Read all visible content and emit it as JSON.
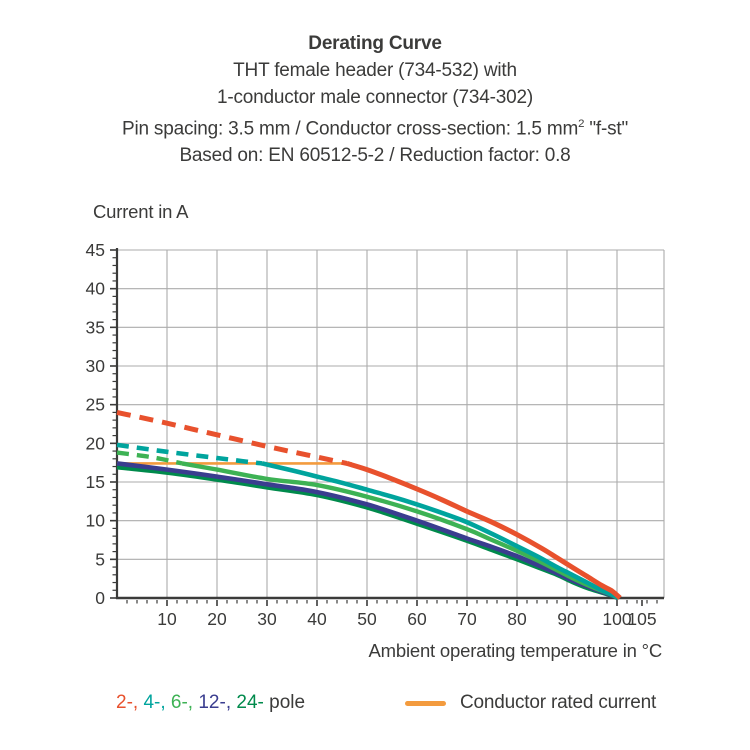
{
  "title_block": {
    "title": "Derating Curve",
    "line2": "THT female header (734-532) with",
    "line3": "1-conductor male connector (734-302)",
    "line4_pre": "Pin spacing: 3.5 mm / Conductor cross-section: 1.5 mm",
    "line4_sup": "2",
    "line4_post": " \"f-st\"",
    "line5": "Based on: EN 60512-5-2 / Reduction factor: 0.8"
  },
  "chart_data": {
    "type": "line",
    "title": "Derating Curve",
    "xlabel": "Ambient operating temperature in °C",
    "ylabel": "Current in A",
    "xlim": [
      0,
      109.4
    ],
    "ylim": [
      0,
      45
    ],
    "grid": true,
    "x_major_ticks": [
      10,
      20,
      30,
      40,
      50,
      60,
      70,
      80,
      90,
      100,
      105
    ],
    "x_grid_ticks": [
      10,
      20,
      30,
      40,
      50,
      60,
      70,
      80,
      90,
      100
    ],
    "x_minor_step": 2,
    "y_major_ticks": [
      0,
      5,
      10,
      15,
      20,
      25,
      30,
      35,
      40,
      45
    ],
    "y_minor_step": 1,
    "colors": {
      "grid": "#ababab",
      "axis": "#3b3b3a",
      "text": "#3b3b3a"
    },
    "series": [
      {
        "name": "24-pole",
        "color": "#008A4C",
        "width": 4.4,
        "segments": [
          {
            "style": "solid",
            "points": [
              [
                0,
                16.9
              ],
              [
                10,
                16.2
              ],
              [
                20,
                15.3
              ],
              [
                30,
                14.3
              ],
              [
                40,
                13.3
              ],
              [
                50,
                11.7
              ],
              [
                60,
                9.6
              ],
              [
                70,
                7.4
              ],
              [
                75,
                6.2
              ],
              [
                80,
                5.0
              ],
              [
                84,
                4.0
              ],
              [
                88,
                3.0
              ],
              [
                91,
                2.1
              ],
              [
                94,
                1.3
              ],
              [
                97,
                0.7
              ],
              [
                99,
                0.3
              ],
              [
                100.1,
                0
              ]
            ]
          }
        ]
      },
      {
        "name": "Conductor rated current",
        "color": "#F39B3E",
        "width": 2.6,
        "segments": [
          {
            "style": "solid",
            "points": [
              [
                0,
                17.4
              ],
              [
                47,
                17.4
              ]
            ]
          }
        ]
      },
      {
        "name": "12-pole",
        "color": "#3A3D8F",
        "width": 4.6,
        "segments": [
          {
            "style": "solid",
            "points": [
              [
                0,
                17.4
              ],
              [
                10,
                16.6
              ],
              [
                20,
                15.7
              ],
              [
                30,
                14.7
              ],
              [
                40,
                13.7
              ],
              [
                50,
                12.1
              ],
              [
                60,
                10.0
              ],
              [
                70,
                7.7
              ],
              [
                75,
                6.6
              ],
              [
                80,
                5.4
              ],
              [
                84,
                4.3
              ],
              [
                88,
                3.2
              ],
              [
                91,
                2.3
              ],
              [
                94,
                1.5
              ],
              [
                97,
                0.8
              ],
              [
                99,
                0.35
              ],
              [
                100.2,
                0
              ]
            ]
          }
        ]
      },
      {
        "name": "6-pole",
        "color": "#3DB254",
        "width": 4.4,
        "segments": [
          {
            "style": "dashed",
            "points": [
              [
                0,
                18.8
              ],
              [
                7,
                18.2
              ],
              [
                13,
                17.4
              ]
            ]
          },
          {
            "style": "solid",
            "points": [
              [
                13,
                17.4
              ],
              [
                20,
                16.6
              ],
              [
                30,
                15.4
              ],
              [
                40,
                14.6
              ],
              [
                50,
                13.1
              ],
              [
                60,
                11.2
              ],
              [
                70,
                8.9
              ],
              [
                75,
                7.5
              ],
              [
                80,
                6.1
              ],
              [
                84,
                4.9
              ],
              [
                88,
                3.6
              ],
              [
                91,
                2.6
              ],
              [
                94,
                1.7
              ],
              [
                97,
                0.9
              ],
              [
                99,
                0.4
              ],
              [
                100.3,
                0
              ]
            ]
          }
        ]
      },
      {
        "name": "4-pole",
        "color": "#00A49D",
        "width": 4.6,
        "segments": [
          {
            "style": "dashed",
            "points": [
              [
                0,
                19.8
              ],
              [
                10,
                18.9
              ],
              [
                20,
                18.1
              ],
              [
                25,
                17.7
              ],
              [
                29,
                17.4
              ]
            ]
          },
          {
            "style": "solid",
            "points": [
              [
                29,
                17.4
              ],
              [
                35,
                16.5
              ],
              [
                40,
                15.7
              ],
              [
                45,
                14.9
              ],
              [
                50,
                14.0
              ],
              [
                55,
                13.1
              ],
              [
                60,
                12.1
              ],
              [
                65,
                11.0
              ],
              [
                70,
                9.8
              ],
              [
                75,
                8.3
              ],
              [
                80,
                6.7
              ],
              [
                84,
                5.4
              ],
              [
                88,
                4.0
              ],
              [
                91,
                3.0
              ],
              [
                94,
                2.0
              ],
              [
                97,
                1.0
              ],
              [
                99,
                0.45
              ],
              [
                100.4,
                0
              ]
            ]
          }
        ]
      },
      {
        "name": "2-pole",
        "color": "#E8512D",
        "width": 5.0,
        "segments": [
          {
            "style": "dashed",
            "points": [
              [
                0,
                24.0
              ],
              [
                10,
                22.6
              ],
              [
                20,
                21.1
              ],
              [
                30,
                19.6
              ],
              [
                38,
                18.5
              ],
              [
                46,
                17.4
              ]
            ]
          },
          {
            "style": "solid",
            "points": [
              [
                46,
                17.4
              ],
              [
                50,
                16.6
              ],
              [
                55,
                15.4
              ],
              [
                60,
                14.1
              ],
              [
                65,
                12.7
              ],
              [
                70,
                11.2
              ],
              [
                75,
                9.8
              ],
              [
                80,
                8.2
              ],
              [
                85,
                6.4
              ],
              [
                88,
                5.2
              ],
              [
                91,
                4.0
              ],
              [
                94,
                2.8
              ],
              [
                97,
                1.6
              ],
              [
                99,
                0.9
              ],
              [
                100.6,
                0
              ]
            ]
          }
        ]
      }
    ]
  },
  "legend": {
    "pole_items": [
      {
        "label": "2-",
        "color": "#E8512D"
      },
      {
        "label": "4-",
        "color": "#00A49D"
      },
      {
        "label": "6-",
        "color": "#3DB254"
      },
      {
        "label": "12-",
        "color": "#3A3D8F"
      },
      {
        "label": "24-",
        "color": "#008A4C"
      }
    ],
    "separator": ", ",
    "suffix": " pole",
    "rated_label": "Conductor rated current",
    "rated_color": "#F39B3E"
  }
}
